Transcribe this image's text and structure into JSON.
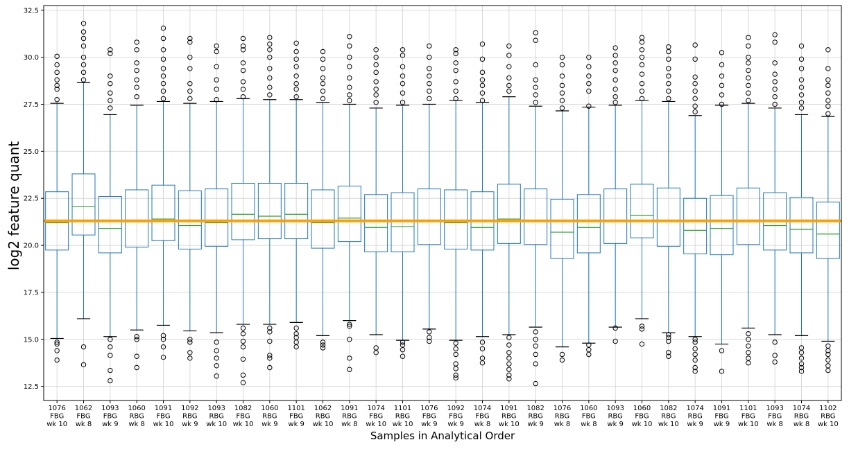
{
  "chart_data": {
    "type": "box",
    "ylabel": "log2 feature quant",
    "xlabel": "Samples in Analytical Order",
    "ylim": [
      11.75,
      32.75
    ],
    "yticks": [
      12.5,
      15.0,
      17.5,
      20.0,
      22.5,
      25.0,
      27.5,
      30.0,
      32.5
    ],
    "ytick_labels": [
      "12.5",
      "15.0",
      "17.5",
      "20.0",
      "22.5",
      "25.0",
      "27.5",
      "30.0",
      "32.5"
    ],
    "grid": true,
    "reference_line": 21.3,
    "colors": {
      "box": "#1f77b4",
      "median": "#2ca02c",
      "reference": "#ff9f00",
      "grid": "#d9d9d9",
      "flier": "#000000"
    },
    "categories": [
      [
        "1076",
        "FBG",
        "wk 10"
      ],
      [
        "1062",
        "FBG",
        "wk 8"
      ],
      [
        "1093",
        "FBG",
        "wk 9"
      ],
      [
        "1060",
        "RBG",
        "wk 8"
      ],
      [
        "1091",
        "FBG",
        "wk 10"
      ],
      [
        "1092",
        "RBG",
        "wk 9"
      ],
      [
        "1093",
        "RBG",
        "wk 10"
      ],
      [
        "1082",
        "FBG",
        "wk 10"
      ],
      [
        "1060",
        "RBG",
        "wk 9"
      ],
      [
        "1101",
        "FBG",
        "wk 9"
      ],
      [
        "1062",
        "RBG",
        "wk 10"
      ],
      [
        "1091",
        "RBG",
        "wk 8"
      ],
      [
        "1074",
        "FBG",
        "wk 10"
      ],
      [
        "1101",
        "RBG",
        "wk 10"
      ],
      [
        "1076",
        "FBG",
        "wk 9"
      ],
      [
        "1092",
        "FBG",
        "wk 9"
      ],
      [
        "1074",
        "FBG",
        "wk 8"
      ],
      [
        "1091",
        "RBG",
        "wk 10"
      ],
      [
        "1082",
        "RBG",
        "wk 9"
      ],
      [
        "1076",
        "RBG",
        "wk 8"
      ],
      [
        "1060",
        "FBG",
        "wk 8"
      ],
      [
        "1093",
        "RBG",
        "wk 9"
      ],
      [
        "1060",
        "FBG",
        "wk 10"
      ],
      [
        "1082",
        "RBG",
        "wk 10"
      ],
      [
        "1074",
        "RBG",
        "wk 9"
      ],
      [
        "1091",
        "FBG",
        "wk 9"
      ],
      [
        "1101",
        "FBG",
        "wk 10"
      ],
      [
        "1093",
        "FBG",
        "wk 8"
      ],
      [
        "1074",
        "RBG",
        "wk 8"
      ],
      [
        "1102",
        "RBG",
        "wk 10"
      ]
    ],
    "boxes": [
      {
        "whislo": 15.05,
        "q1": 19.75,
        "med": 21.2,
        "q3": 22.85,
        "whishi": 27.55,
        "fliers": [
          13.9,
          14.4,
          14.75,
          14.85,
          27.75,
          28.3,
          28.5,
          28.8,
          29.2,
          29.6,
          30.05
        ]
      },
      {
        "whislo": 16.1,
        "q1": 20.55,
        "med": 22.05,
        "q3": 23.8,
        "whishi": 28.65,
        "fliers": [
          13.65,
          14.6,
          28.8,
          29.2,
          29.6,
          30.0,
          30.6,
          31.0,
          31.35,
          31.8
        ]
      },
      {
        "whislo": 15.15,
        "q1": 19.6,
        "med": 20.9,
        "q3": 22.6,
        "whishi": 26.95,
        "fliers": [
          12.8,
          13.35,
          14.15,
          14.6,
          15.0,
          27.3,
          27.7,
          28.1,
          28.6,
          29.0,
          30.2,
          30.4
        ]
      },
      {
        "whislo": 15.5,
        "q1": 19.9,
        "med": 21.25,
        "q3": 22.95,
        "whishi": 27.45,
        "fliers": [
          13.5,
          14.1,
          15.0,
          15.15,
          27.9,
          28.4,
          28.8,
          29.3,
          29.7,
          30.4,
          30.8
        ]
      },
      {
        "whislo": 15.75,
        "q1": 20.25,
        "med": 21.4,
        "q3": 23.2,
        "whishi": 27.65,
        "fliers": [
          14.05,
          14.6,
          15.0,
          15.2,
          27.8,
          28.2,
          28.6,
          29.0,
          29.4,
          29.9,
          30.4,
          31.0,
          31.55
        ]
      },
      {
        "whislo": 15.45,
        "q1": 19.8,
        "med": 21.05,
        "q3": 22.9,
        "whishi": 27.55,
        "fliers": [
          14.0,
          14.3,
          14.85,
          15.0,
          27.8,
          28.2,
          28.6,
          29.4,
          30.0,
          30.8,
          31.0
        ]
      },
      {
        "whislo": 15.35,
        "q1": 19.95,
        "med": 21.2,
        "q3": 23.0,
        "whishi": 27.65,
        "fliers": [
          13.05,
          13.6,
          14.0,
          14.4,
          14.85,
          27.75,
          28.3,
          28.8,
          29.5,
          30.3,
          30.6
        ]
      },
      {
        "whislo": 15.8,
        "q1": 20.3,
        "med": 21.65,
        "q3": 23.3,
        "whishi": 27.8,
        "fliers": [
          12.7,
          13.1,
          13.95,
          14.6,
          14.9,
          15.3,
          15.6,
          27.9,
          28.3,
          28.7,
          29.3,
          29.7,
          30.4,
          30.6,
          31.0
        ]
      },
      {
        "whislo": 15.8,
        "q1": 20.35,
        "med": 21.55,
        "q3": 23.3,
        "whishi": 27.75,
        "fliers": [
          13.5,
          14.0,
          14.15,
          14.9,
          15.4,
          15.6,
          28.0,
          28.4,
          28.9,
          29.4,
          30.0,
          30.4,
          30.7,
          31.05
        ]
      },
      {
        "whislo": 15.9,
        "q1": 20.35,
        "med": 21.65,
        "q3": 23.3,
        "whishi": 27.75,
        "fliers": [
          14.6,
          14.85,
          15.1,
          15.3,
          15.6,
          27.9,
          28.3,
          28.6,
          29.0,
          29.5,
          29.9,
          30.3,
          30.75
        ]
      },
      {
        "whislo": 15.2,
        "q1": 19.85,
        "med": 21.2,
        "q3": 22.95,
        "whishi": 27.6,
        "fliers": [
          14.55,
          14.7,
          14.85,
          27.8,
          28.2,
          28.6,
          28.9,
          29.4,
          29.9,
          30.3
        ]
      },
      {
        "whislo": 16.0,
        "q1": 20.2,
        "med": 21.45,
        "q3": 23.15,
        "whishi": 27.5,
        "fliers": [
          13.4,
          14.0,
          15.0,
          15.7,
          15.8,
          27.7,
          28.0,
          28.4,
          28.9,
          29.5,
          30.0,
          30.6,
          31.1
        ]
      },
      {
        "whislo": 15.25,
        "q1": 19.65,
        "med": 20.95,
        "q3": 22.7,
        "whishi": 27.3,
        "fliers": [
          14.3,
          14.55,
          27.6,
          28.0,
          28.3,
          28.7,
          29.2,
          29.6,
          30.0,
          30.4
        ]
      },
      {
        "whislo": 14.95,
        "q1": 19.65,
        "med": 21.0,
        "q3": 22.8,
        "whishi": 27.45,
        "fliers": [
          14.1,
          14.45,
          14.7,
          14.85,
          27.6,
          28.1,
          28.6,
          29.0,
          29.5,
          30.1,
          30.4
        ]
      },
      {
        "whislo": 15.55,
        "q1": 20.05,
        "med": 21.3,
        "q3": 23.0,
        "whishi": 27.5,
        "fliers": [
          14.9,
          15.1,
          15.4,
          27.8,
          28.2,
          28.6,
          29.0,
          29.4,
          30.0,
          30.6
        ]
      },
      {
        "whislo": 14.95,
        "q1": 19.8,
        "med": 21.2,
        "q3": 22.95,
        "whishi": 27.7,
        "fliers": [
          12.95,
          13.1,
          13.45,
          13.7,
          14.2,
          14.5,
          14.8,
          27.8,
          28.2,
          28.7,
          29.3,
          29.7,
          30.2,
          30.4
        ]
      },
      {
        "whislo": 15.15,
        "q1": 19.75,
        "med": 20.95,
        "q3": 22.85,
        "whishi": 27.6,
        "fliers": [
          13.75,
          14.0,
          14.5,
          14.85,
          27.7,
          28.1,
          28.5,
          28.8,
          29.2,
          29.9,
          30.7
        ]
      },
      {
        "whislo": 15.25,
        "q1": 20.1,
        "med": 21.4,
        "q3": 23.25,
        "whishi": 27.9,
        "fliers": [
          12.9,
          13.1,
          13.4,
          13.7,
          14.0,
          14.3,
          14.7,
          15.1,
          28.2,
          28.5,
          28.9,
          29.5,
          30.1,
          30.6
        ]
      },
      {
        "whislo": 15.65,
        "q1": 20.05,
        "med": 21.3,
        "q3": 23.0,
        "whishi": 27.4,
        "fliers": [
          12.65,
          13.7,
          14.2,
          14.65,
          15.0,
          15.4,
          27.6,
          28.0,
          28.4,
          28.8,
          29.6,
          30.9,
          31.3
        ]
      },
      {
        "whislo": 14.6,
        "q1": 19.3,
        "med": 20.7,
        "q3": 22.45,
        "whishi": 27.15,
        "fliers": [
          13.9,
          14.2,
          27.3,
          27.7,
          28.1,
          28.5,
          29.0,
          29.6,
          30.0
        ]
      },
      {
        "whislo": 14.8,
        "q1": 19.6,
        "med": 20.95,
        "q3": 22.7,
        "whishi": 27.35,
        "fliers": [
          14.2,
          14.45,
          14.7,
          27.4,
          28.2,
          28.6,
          29.0,
          29.5,
          30.0
        ]
      },
      {
        "whislo": 15.65,
        "q1": 20.1,
        "med": 21.3,
        "q3": 23.0,
        "whishi": 27.45,
        "fliers": [
          14.9,
          15.6,
          27.6,
          27.9,
          28.3,
          28.8,
          29.3,
          29.7,
          30.1,
          30.5
        ]
      },
      {
        "whislo": 16.1,
        "q1": 20.4,
        "med": 21.6,
        "q3": 23.25,
        "whishi": 27.7,
        "fliers": [
          14.75,
          15.55,
          15.7,
          27.8,
          28.2,
          28.6,
          29.1,
          29.6,
          30.0,
          30.4,
          30.8,
          31.05
        ]
      },
      {
        "whislo": 15.35,
        "q1": 19.95,
        "med": 21.3,
        "q3": 23.05,
        "whishi": 27.65,
        "fliers": [
          14.1,
          14.3,
          14.9,
          15.1,
          15.25,
          27.8,
          28.2,
          28.6,
          29.0,
          29.4,
          29.9,
          30.3,
          30.55
        ]
      },
      {
        "whislo": 15.15,
        "q1": 19.55,
        "med": 20.8,
        "q3": 22.5,
        "whishi": 26.9,
        "fliers": [
          13.3,
          13.5,
          13.9,
          14.2,
          14.5,
          14.85,
          15.0,
          27.1,
          27.4,
          27.8,
          28.2,
          28.6,
          28.95,
          29.9,
          30.65
        ]
      },
      {
        "whislo": 14.75,
        "q1": 19.5,
        "med": 20.9,
        "q3": 22.65,
        "whishi": 27.45,
        "fliers": [
          13.3,
          14.4,
          27.5,
          28.0,
          28.5,
          29.0,
          29.6,
          30.25
        ]
      },
      {
        "whislo": 15.6,
        "q1": 20.05,
        "med": 21.25,
        "q3": 23.05,
        "whishi": 27.55,
        "fliers": [
          13.75,
          14.0,
          14.3,
          14.65,
          15.0,
          15.3,
          27.7,
          28.1,
          28.5,
          28.9,
          29.3,
          29.7,
          30.0,
          30.6,
          31.05
        ]
      },
      {
        "whislo": 15.25,
        "q1": 19.75,
        "med": 21.05,
        "q3": 22.8,
        "whishi": 27.3,
        "fliers": [
          13.8,
          14.15,
          14.85,
          27.5,
          27.9,
          28.3,
          28.7,
          29.1,
          29.7,
          30.8,
          31.2
        ]
      },
      {
        "whislo": 15.2,
        "q1": 19.6,
        "med": 20.85,
        "q3": 22.55,
        "whishi": 26.95,
        "fliers": [
          13.3,
          13.5,
          13.7,
          14.0,
          14.3,
          14.55,
          27.3,
          27.6,
          28.0,
          28.4,
          28.8,
          29.4,
          29.9,
          30.6
        ]
      },
      {
        "whislo": 14.9,
        "q1": 19.3,
        "med": 20.6,
        "q3": 22.3,
        "whishi": 26.85,
        "fliers": [
          13.35,
          13.6,
          13.9,
          14.2,
          14.4,
          14.65,
          27.0,
          27.4,
          27.7,
          28.1,
          28.5,
          28.8,
          29.4,
          30.4
        ]
      }
    ]
  }
}
